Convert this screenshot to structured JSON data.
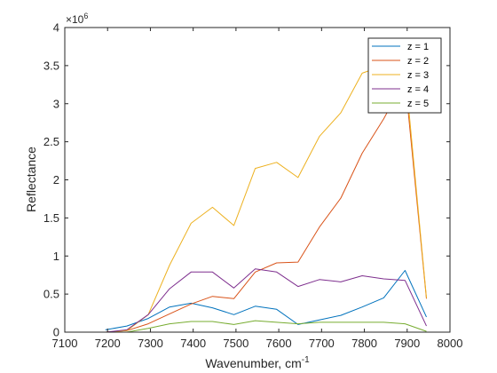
{
  "chart_data": {
    "type": "line",
    "xlabel": "Wavenumber, cm",
    "xlabel_superscript": "-1",
    "ylabel": "Reflectance",
    "y_exponent_label": "×10",
    "y_exponent_power": "6",
    "xlim": [
      7100,
      8000
    ],
    "ylim": [
      0,
      4000000
    ],
    "xticks": [
      7100,
      7200,
      7300,
      7400,
      7500,
      7600,
      7700,
      7800,
      7900,
      8000
    ],
    "yticks": [
      0,
      500000,
      1000000,
      1500000,
      2000000,
      2500000,
      3000000,
      3500000,
      4000000
    ],
    "xtick_labels": [
      "7100",
      "7200",
      "7300",
      "7400",
      "7500",
      "7600",
      "7700",
      "7800",
      "7900",
      "8000"
    ],
    "ytick_labels": [
      "0",
      "0.5",
      "1",
      "1.5",
      "2",
      "2.5",
      "3",
      "3.5",
      "4"
    ],
    "grid": false,
    "legend_position": "top-right",
    "x": [
      7195,
      7245,
      7295,
      7345,
      7395,
      7445,
      7495,
      7545,
      7595,
      7645,
      7695,
      7745,
      7795,
      7845,
      7895,
      7945
    ],
    "series": [
      {
        "name": "z = 1",
        "color": "#0072BD",
        "values": [
          30000,
          80000,
          180000,
          330000,
          380000,
          320000,
          230000,
          340000,
          300000,
          100000,
          160000,
          220000,
          330000,
          450000,
          810000,
          200000
        ]
      },
      {
        "name": "z = 2",
        "color": "#D95319",
        "values": [
          0,
          20000,
          110000,
          240000,
          370000,
          470000,
          440000,
          790000,
          910000,
          920000,
          1380000,
          1760000,
          2350000,
          2800000,
          3320000,
          440000
        ]
      },
      {
        "name": "z = 3",
        "color": "#EDB120",
        "values": [
          0,
          20000,
          230000,
          880000,
          1430000,
          1640000,
          1400000,
          2150000,
          2230000,
          2030000,
          2570000,
          2880000,
          3400000,
          3500000,
          3450000,
          450000
        ]
      },
      {
        "name": "z = 4",
        "color": "#7E2F8E",
        "values": [
          0,
          30000,
          230000,
          570000,
          790000,
          790000,
          580000,
          830000,
          790000,
          600000,
          690000,
          660000,
          740000,
          700000,
          680000,
          80000
        ]
      },
      {
        "name": "z = 5",
        "color": "#77AC30",
        "values": [
          0,
          0,
          50000,
          110000,
          140000,
          140000,
          100000,
          150000,
          130000,
          110000,
          130000,
          130000,
          130000,
          130000,
          110000,
          10000
        ]
      }
    ]
  }
}
